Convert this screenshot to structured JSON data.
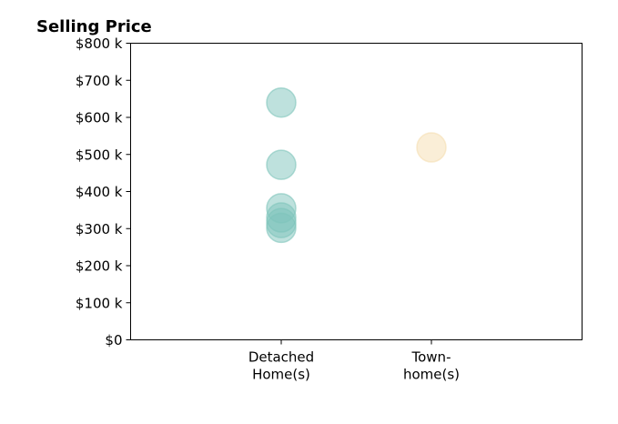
{
  "chart_data": {
    "type": "scatter",
    "title": "Selling Price",
    "xlabel": "",
    "ylabel": "",
    "categories": [
      [
        "Detached",
        "Home(s)"
      ],
      [
        "Town-",
        "home(s)"
      ]
    ],
    "y_ticks": [
      "$0",
      "$100 k",
      "$200 k",
      "$300 k",
      "$400 k",
      "$500 k",
      "$600 k",
      "$700 k",
      "$800 k"
    ],
    "y_tick_values": [
      0,
      100000,
      200000,
      300000,
      400000,
      500000,
      600000,
      700000,
      800000
    ],
    "ylim": [
      0,
      800000
    ],
    "grid": false,
    "series": [
      {
        "category_index": 0,
        "values": [
          640000,
          472000,
          355000,
          330000,
          315000,
          302000
        ],
        "color": "#7ec4bb"
      },
      {
        "category_index": 1,
        "values": [
          519000
        ],
        "color": "#f5deb0"
      }
    ]
  }
}
